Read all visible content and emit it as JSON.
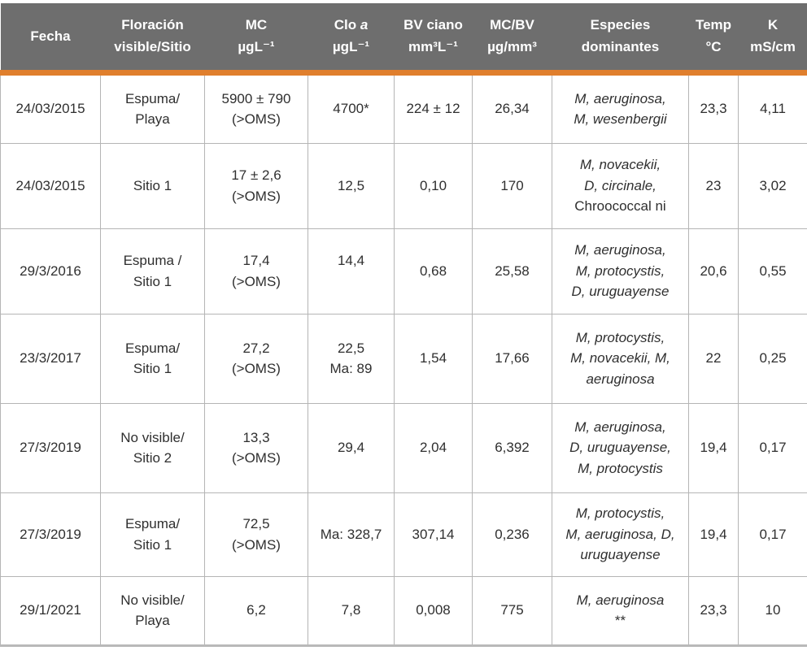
{
  "colors": {
    "header_bg": "#6e6e6e",
    "accent_orange": "#e07f2d",
    "grid": "#b5b5b5",
    "grid_heavy": "#b9b9b9",
    "text": "#2f2f2f",
    "header_text": "#ffffff"
  },
  "table": {
    "columns": {
      "fecha": [
        {
          "t": "Fecha",
          "i": false
        }
      ],
      "floracion": [
        {
          "t": "Floración\nvisible/Sitio",
          "i": false
        }
      ],
      "mc": [
        {
          "t": "MC\nµgL⁻¹",
          "i": false
        }
      ],
      "clo": [
        {
          "t": "Clo ",
          "i": false
        },
        {
          "t": "a",
          "i": true
        },
        {
          "t": "\nµgL⁻¹",
          "i": false
        }
      ],
      "bv": [
        {
          "t": "BV ciano\nmm³L⁻¹",
          "i": false
        }
      ],
      "mcbv": [
        {
          "t": "MC/BV\nµg/mm³",
          "i": false
        }
      ],
      "especies": [
        {
          "t": "Especies\ndominantes",
          "i": false
        }
      ],
      "temp": [
        {
          "t": "Temp\n°C",
          "i": false
        }
      ],
      "k": [
        {
          "t": "K\nmS/cm",
          "i": false
        }
      ]
    },
    "rows": [
      {
        "fecha": "24/03/2015",
        "floracion": "Espuma/\nPlaya",
        "mc": "5900 ± 790\n(>OMS)",
        "clo": "4700*",
        "bv": "224 ± 12",
        "mcbv": "26,34",
        "especies": [
          {
            "t": "M, aeruginosa,\nM, wesenbergii",
            "i": true
          }
        ],
        "temp": "23,3",
        "k": "4,11"
      },
      {
        "fecha": "24/03/2015",
        "floracion": "Sitio 1",
        "mc": "17 ± 2,6\n(>OMS)",
        "clo": "12,5",
        "bv": "0,10",
        "mcbv": "170",
        "especies": [
          {
            "t": "M, novacekii,\nD, circinale,\n",
            "i": true
          },
          {
            "t": "Chroococcal ni",
            "i": false
          }
        ],
        "temp": "23",
        "k": "3,02"
      },
      {
        "fecha": "29/3/2016",
        "floracion": "Espuma /\nSitio 1",
        "mc": "17,4\n(>OMS)",
        "clo": "14,4\n ",
        "bv": "0,68",
        "mcbv": "25,58",
        "especies": [
          {
            "t": "M, aeruginosa,\nM, protocystis,\nD, uruguayense",
            "i": true
          }
        ],
        "temp": "20,6",
        "k": "0,55"
      },
      {
        "fecha": "23/3/2017",
        "floracion": "Espuma/\nSitio 1",
        "mc": "27,2\n(>OMS)",
        "clo": "22,5\nMa: 89",
        "bv": "1,54",
        "mcbv": "17,66",
        "especies": [
          {
            "t": "M, protocystis,\nM, novacekii, M,\naeruginosa",
            "i": true
          }
        ],
        "temp": "22",
        "k": "0,25"
      },
      {
        "fecha": "27/3/2019",
        "floracion": "No visible/\nSitio 2",
        "mc": "13,3\n(>OMS)",
        "clo": "29,4",
        "bv": "2,04",
        "mcbv": "6,392",
        "especies": [
          {
            "t": "M, aeruginosa,\nD, uruguayense,\nM, protocystis",
            "i": true
          }
        ],
        "temp": "19,4",
        "k": "0,17"
      },
      {
        "fecha": "27/3/2019",
        "floracion": "Espuma/\nSitio 1",
        "mc": "72,5\n(>OMS)",
        "clo": "Ma: 328,7",
        "bv": "307,14",
        "mcbv": "0,236",
        "especies": [
          {
            "t": "M, protocystis,\nM, aeruginosa, D,\nuruguayense",
            "i": true
          }
        ],
        "temp": "19,4",
        "k": "0,17"
      },
      {
        "fecha": "29/1/2021",
        "floracion": "No visible/\nPlaya",
        "mc": "6,2",
        "clo": "7,8",
        "bv": "0,008",
        "mcbv": "775",
        "especies": [
          {
            "t": "M, aeruginosa\n",
            "i": true
          },
          {
            "t": "**",
            "i": false
          }
        ],
        "temp": "23,3",
        "k": "10"
      }
    ]
  },
  "chart_data": {
    "type": "table",
    "columns": [
      "Fecha",
      "Floración visible/Sitio",
      "MC µgL⁻¹",
      "Clo a µgL⁻¹",
      "BV ciano mm³L⁻¹",
      "MC/BV µg/mm³",
      "Especies dominantes",
      "Temp °C",
      "K mS/cm"
    ],
    "rows": [
      [
        "24/03/2015",
        "Espuma/Playa",
        "5900 ± 790 (>OMS)",
        "4700*",
        "224 ± 12",
        "26,34",
        "M, aeruginosa, M, wesenbergii",
        "23,3",
        "4,11"
      ],
      [
        "24/03/2015",
        "Sitio 1",
        "17 ± 2,6 (>OMS)",
        "12,5",
        "0,10",
        "170",
        "M, novacekii, D, circinale, Chroococcal ni",
        "23",
        "3,02"
      ],
      [
        "29/3/2016",
        "Espuma / Sitio 1",
        "17,4 (>OMS)",
        "14,4",
        "0,68",
        "25,58",
        "M, aeruginosa, M, protocystis, D, uruguayense",
        "20,6",
        "0,55"
      ],
      [
        "23/3/2017",
        "Espuma/Sitio 1",
        "27,2 (>OMS)",
        "22,5 Ma: 89",
        "1,54",
        "17,66",
        "M, protocystis, M, novacekii, M, aeruginosa",
        "22",
        "0,25"
      ],
      [
        "27/3/2019",
        "No visible/Sitio 2",
        "13,3 (>OMS)",
        "29,4",
        "2,04",
        "6,392",
        "M, aeruginosa, D, uruguayense, M, protocystis",
        "19,4",
        "0,17"
      ],
      [
        "27/3/2019",
        "Espuma/Sitio 1",
        "72,5 (>OMS)",
        "Ma: 328,7",
        "307,14",
        "0,236",
        "M, protocystis, M, aeruginosa, D, uruguayense",
        "19,4",
        "0,17"
      ],
      [
        "29/1/2021",
        "No visible/Playa",
        "6,2",
        "7,8",
        "0,008",
        "775",
        "M, aeruginosa **",
        "23,3",
        "10"
      ]
    ]
  }
}
